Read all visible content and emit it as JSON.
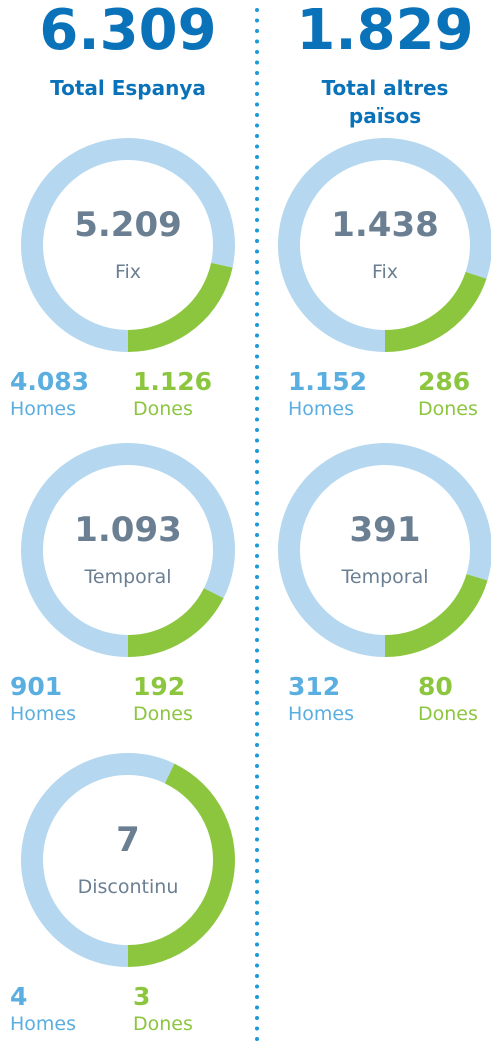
{
  "colors": {
    "total": "#0a72b9",
    "homes": "#5baee0",
    "homes_ring": "#b5d8f0",
    "dones": "#8cc63f",
    "center": "#6b7f93",
    "divider": "#1a9ad6"
  },
  "columns": [
    {
      "total": {
        "value": 6309,
        "label": "6.309"
      },
      "total_label": "Total Espanya",
      "donuts": [
        {
          "center": {
            "value": 5209,
            "label": "5.209"
          },
          "name": "Fix",
          "homes": {
            "value": 4083,
            "label": "4.083"
          },
          "homes_label": "Homes",
          "dones": {
            "value": 1126,
            "label": "1.126"
          },
          "dones_label": "Dones"
        },
        {
          "center": {
            "value": 1093,
            "label": "1.093"
          },
          "name": "Temporal",
          "homes": 901,
          "homes_label": "Homes",
          "dones": 192,
          "dones_label": "Dones"
        },
        {
          "center": 7,
          "name": "Discontinu",
          "homes": 4,
          "homes_label": "Homes",
          "dones": 3,
          "dones_label": "Dones"
        }
      ]
    },
    {
      "total": {
        "value": 1829,
        "label": "1.829"
      },
      "total_label": "Total altres països",
      "donuts": [
        {
          "center": {
            "value": 1438,
            "label": "1.438"
          },
          "name": "Fix",
          "homes": {
            "value": 1152,
            "label": "1.152"
          },
          "homes_label": "Homes",
          "dones": 286,
          "dones_label": "Dones"
        },
        {
          "center": 391,
          "name": "Temporal",
          "homes": 312,
          "homes_label": "Homes",
          "dones": 80,
          "dones_label": "Dones"
        }
      ]
    }
  ]
}
